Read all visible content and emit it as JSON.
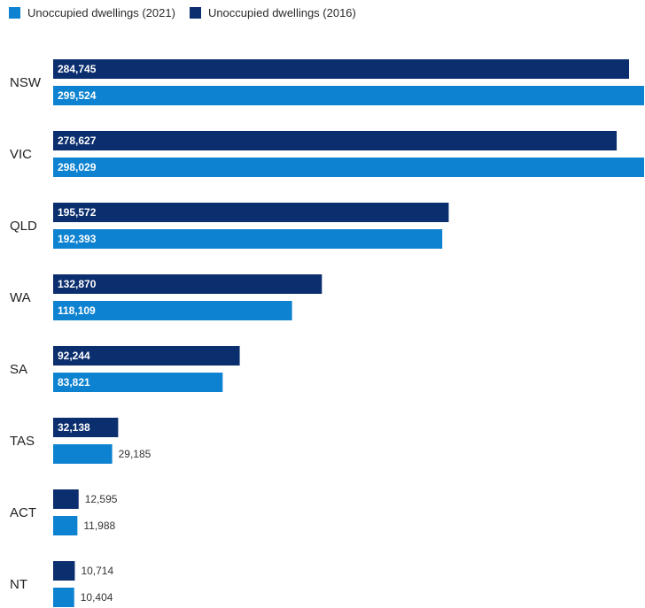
{
  "legend": {
    "items": [
      {
        "label": "Unoccupied dwellings (2021)",
        "color": "#0c82d1"
      },
      {
        "label": "Unoccupied dwellings (2016)",
        "color": "#0b2e6e"
      }
    ]
  },
  "chart_data": {
    "type": "bar",
    "orientation": "horizontal",
    "categories": [
      "NSW",
      "VIC",
      "QLD",
      "WA",
      "SA",
      "TAS",
      "ACT",
      "NT"
    ],
    "series": [
      {
        "name": "Unoccupied dwellings (2016)",
        "color": "#0b2e6e",
        "values": [
          284745,
          278627,
          195572,
          132870,
          92244,
          32138,
          12595,
          10714
        ]
      },
      {
        "name": "Unoccupied dwellings (2021)",
        "color": "#0c82d1",
        "values": [
          299524,
          298029,
          192393,
          118109,
          83821,
          29185,
          11988,
          10404
        ]
      }
    ],
    "value_labels": [
      [
        "284,745",
        "278,627",
        "195,572",
        "132,870",
        "92,244",
        "32,138",
        "12,595",
        "10,714"
      ],
      [
        "299,524",
        "298,029",
        "192,393",
        "118,109",
        "83,821",
        "29,185",
        "11,988",
        "10,404"
      ]
    ],
    "title": "",
    "xlabel": "",
    "ylabel": "",
    "legend_position": "top-left",
    "grid": false
  }
}
